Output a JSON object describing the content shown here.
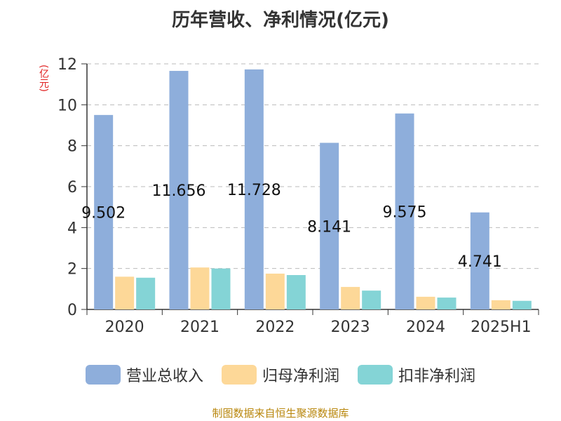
{
  "title": "历年营收、净利情况(亿元)",
  "unit_label": "(亿元)",
  "source": "制图数据来自恒生聚源数据库",
  "chart_data": {
    "type": "bar",
    "categories": [
      "2020",
      "2021",
      "2022",
      "2023",
      "2024",
      "2025H1"
    ],
    "series": [
      {
        "name": "营业总收入",
        "color": "#8eaedb",
        "values": [
          9.502,
          11.656,
          11.728,
          8.141,
          9.575,
          4.741
        ],
        "labels": [
          "9.502",
          "11.656",
          "11.728",
          "8.141",
          "9.575",
          "4.741"
        ]
      },
      {
        "name": "归母净利润",
        "color": "#fdd898",
        "values": [
          1.6,
          2.05,
          1.75,
          1.1,
          0.62,
          0.45
        ]
      },
      {
        "name": "扣非净利润",
        "color": "#84d4d6",
        "values": [
          1.55,
          2.0,
          1.68,
          0.92,
          0.58,
          0.42
        ]
      }
    ],
    "ylim": [
      0,
      12
    ],
    "yticks": [
      "0",
      "2",
      "4",
      "6",
      "8",
      "10",
      "12"
    ],
    "grid": true,
    "legend_position": "bottom"
  }
}
